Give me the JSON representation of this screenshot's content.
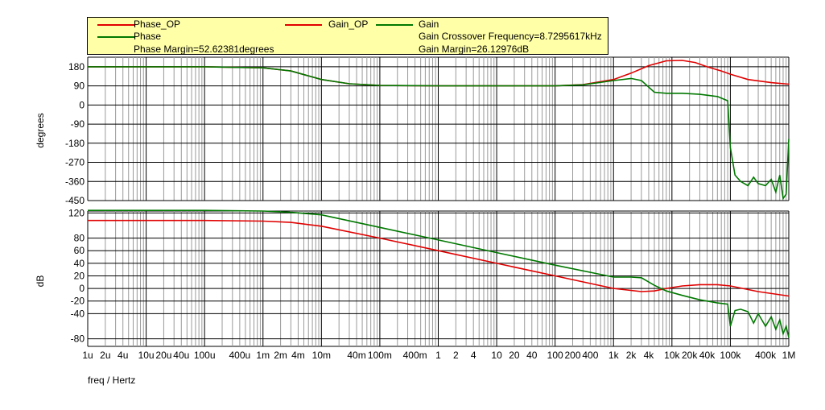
{
  "legend": {
    "phase_op": "Phase_OP",
    "phase": "Phase",
    "phase_margin": "Phase Margin=52.62381degrees",
    "gain_op": "Gain_OP",
    "gain": "Gain",
    "crossover": "Gain Crossover Frequency=8.7295617kHz",
    "gain_margin": "Gain Margin=26.12976dB"
  },
  "colors": {
    "op": "#e00000",
    "main": "#007800",
    "grid": "#000000",
    "legend_bg": "#ffffa8"
  },
  "chart_data": [
    {
      "type": "line",
      "ylabel": "degrees",
      "xscale": "log",
      "xlim": [
        "1u",
        "1M"
      ],
      "ylim": [
        -450,
        225
      ],
      "y_ticks": [
        180,
        90,
        0,
        -90,
        -180,
        -270,
        -360,
        -450
      ],
      "series": [
        {
          "name": "Phase_OP",
          "x": [
            1e-06,
            0.0001,
            0.001,
            0.003,
            0.01,
            0.03,
            0.1,
            1,
            10,
            100,
            300,
            1000,
            2000,
            4000,
            8000,
            15000,
            25000,
            40000,
            70000,
            100000,
            200000,
            500000,
            1000000
          ],
          "y": [
            180,
            180,
            175,
            160,
            120,
            100,
            92,
            90,
            90,
            90,
            96,
            120,
            150,
            185,
            208,
            210,
            200,
            180,
            160,
            145,
            120,
            105,
            98
          ]
        },
        {
          "name": "Phase",
          "x": [
            1e-06,
            0.0001,
            0.001,
            0.003,
            0.01,
            0.03,
            0.1,
            1,
            10,
            100,
            300,
            1000,
            2000,
            3000,
            5000,
            8000,
            15000,
            30000,
            60000,
            90000,
            100000,
            120000,
            150000,
            200000,
            250000,
            300000,
            400000,
            500000,
            600000,
            700000,
            800000,
            900000,
            1000000
          ],
          "y": [
            180,
            180,
            175,
            160,
            120,
            100,
            92,
            90,
            90,
            90,
            95,
            115,
            125,
            115,
            60,
            55,
            55,
            50,
            40,
            20,
            -200,
            -330,
            -360,
            -380,
            -340,
            -370,
            -380,
            -350,
            -410,
            -330,
            -440,
            -420,
            -160
          ]
        }
      ]
    },
    {
      "type": "line",
      "xlabel": "freq / Hertz",
      "ylabel": "dB",
      "xscale": "log",
      "xlim": [
        "1u",
        "1M"
      ],
      "ylim": [
        -92,
        123
      ],
      "y_ticks": [
        120,
        80,
        60,
        40,
        20,
        0,
        -20,
        -40,
        -80
      ],
      "x_ticks": [
        "1u",
        "2u",
        "4u",
        "10u",
        "20u",
        "40u",
        "100u",
        "400u",
        "1m",
        "2m",
        "4m",
        "10m",
        "40m",
        "100m",
        "400m",
        "1",
        "2",
        "4",
        "10",
        "20",
        "40",
        "100",
        "200",
        "400",
        "1k",
        "2k",
        "4k",
        "10k",
        "20k",
        "40k",
        "100k",
        "400k",
        "1M"
      ],
      "series": [
        {
          "name": "Gain_OP",
          "x": [
            1e-06,
            0.0001,
            0.001,
            0.003,
            0.01,
            0.1,
            1,
            10,
            100,
            1000,
            3000,
            5000,
            8000,
            15000,
            30000,
            60000,
            100000,
            300000,
            1000000
          ],
          "y": [
            108,
            108,
            107,
            105,
            99,
            80,
            60,
            40,
            20,
            0,
            -5,
            -4,
            0,
            4,
            6,
            6,
            4,
            -5,
            -12
          ]
        },
        {
          "name": "Gain",
          "x": [
            1e-06,
            0.0001,
            0.001,
            0.003,
            0.01,
            0.1,
            1,
            10,
            100,
            1000,
            2000,
            3000,
            5000,
            8000,
            15000,
            30000,
            60000,
            90000,
            100000,
            120000,
            150000,
            200000,
            250000,
            300000,
            400000,
            500000,
            600000,
            700000,
            800000,
            900000,
            1000000
          ],
          "y": [
            124,
            124,
            123,
            121,
            117,
            97,
            77,
            57,
            37,
            18,
            18,
            17,
            5,
            -4,
            -11,
            -18,
            -23,
            -25,
            -60,
            -35,
            -33,
            -37,
            -55,
            -40,
            -60,
            -45,
            -65,
            -50,
            -72,
            -60,
            -78
          ]
        }
      ]
    }
  ]
}
